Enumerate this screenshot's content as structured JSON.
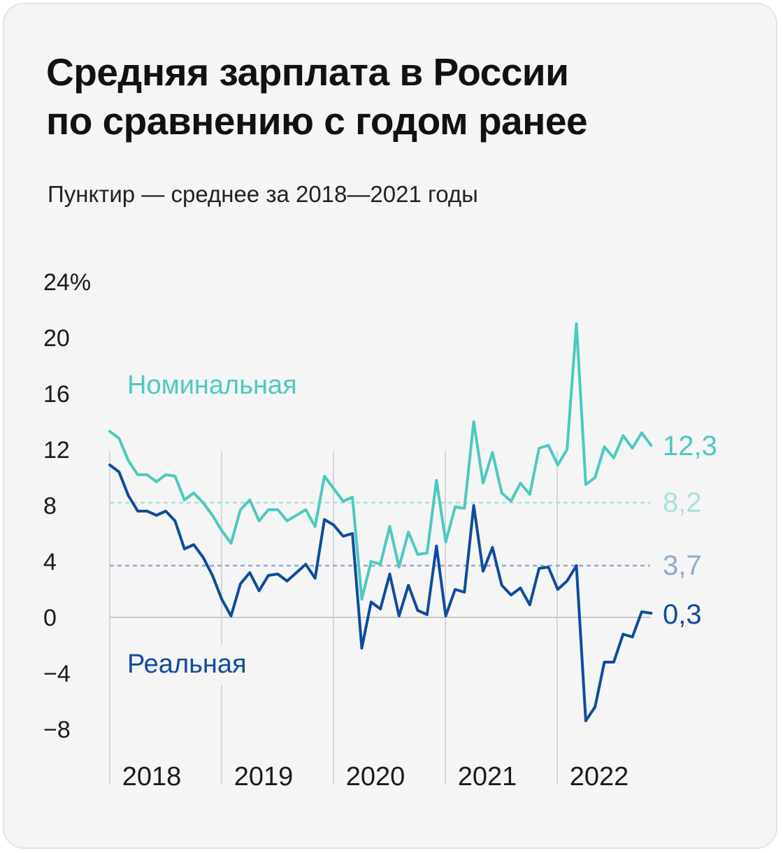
{
  "title_line1": "Средняя зарплата в России",
  "title_line2": "по сравнению с годом ранее",
  "subtitle": "Пунктир — среднее за 2018—2021 годы",
  "chart_data": {
    "type": "line",
    "y_ticks": [
      "24%",
      "20",
      "16",
      "12",
      "8",
      "4",
      "0",
      "−4",
      "−8"
    ],
    "y_tick_values": [
      24,
      20,
      16,
      12,
      8,
      4,
      0,
      -4,
      -8
    ],
    "ylim": [
      -8,
      24
    ],
    "x_tick_labels": [
      "2018",
      "2019",
      "2020",
      "2021",
      "2022"
    ],
    "grid": "vertical year separators",
    "series": [
      {
        "name": "Номинальная",
        "color": "#4cc9c0",
        "end_label": "12,3",
        "average_label": "8,2",
        "average_color": "#a8e0dc",
        "average": 8.2,
        "values": [
          13.3,
          12.8,
          11.2,
          10.2,
          10.2,
          9.7,
          10.2,
          10.1,
          8.4,
          8.9,
          8.2,
          7.3,
          6.2,
          5.3,
          7.7,
          8.4,
          6.9,
          7.7,
          7.7,
          6.9,
          7.3,
          7.7,
          6.5,
          10.1,
          9.2,
          8.3,
          8.6,
          1.3,
          4.0,
          3.8,
          6.5,
          3.6,
          6.1,
          4.5,
          4.6,
          9.8,
          5.4,
          7.9,
          7.8,
          14.0,
          9.6,
          11.8,
          8.9,
          8.3,
          9.6,
          8.8,
          12.1,
          12.3,
          10.9,
          12.0,
          21.0,
          9.5,
          10.0,
          12.2,
          11.4,
          13.0,
          12.1,
          13.2,
          12.3
        ]
      },
      {
        "name": "Реальная",
        "color": "#0f4c9c",
        "end_label": "0,3",
        "average_label": "3,7",
        "average_color": "#8faacb",
        "average": 3.7,
        "values": [
          10.9,
          10.4,
          8.7,
          7.6,
          7.6,
          7.3,
          7.6,
          6.9,
          4.9,
          5.2,
          4.3,
          3.0,
          1.3,
          0.1,
          2.4,
          3.2,
          1.9,
          3.0,
          3.1,
          2.6,
          3.2,
          3.8,
          2.8,
          7.0,
          6.6,
          5.8,
          6.0,
          -2.2,
          1.1,
          0.6,
          3.1,
          0.1,
          2.3,
          0.5,
          0.2,
          5.1,
          0.1,
          2.0,
          1.8,
          8.0,
          3.3,
          5.0,
          2.3,
          1.6,
          2.1,
          0.9,
          3.5,
          3.6,
          2.0,
          2.6,
          3.7,
          -7.4,
          -6.4,
          -3.2,
          -3.2,
          -1.2,
          -1.4,
          0.4,
          0.3
        ]
      }
    ]
  }
}
